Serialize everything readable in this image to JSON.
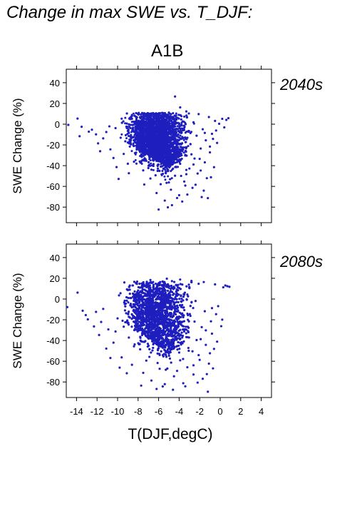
{
  "page": {
    "title": "Change in max SWE vs. T_DJF:",
    "scenario": "A1B"
  },
  "colors": {
    "points": "#1f1fbf",
    "panel_label": "#2222aa",
    "axis": "#000000"
  },
  "chart_data": [
    {
      "type": "scatter",
      "panel_label": "2040s",
      "ylabel": "SWE Change (%)",
      "xlabel": "",
      "xlim": [
        -15,
        5
      ],
      "ylim": [
        -95,
        53
      ],
      "yticks": [
        40,
        20,
        0,
        -20,
        -40,
        -60,
        -80
      ],
      "xticks": [
        -14,
        -12,
        -10,
        -8,
        -6,
        -4,
        -2,
        0,
        2,
        4
      ],
      "show_x_tick_labels": false,
      "series": [
        {
          "points": [
            [
              -14.8,
              -0.7
            ],
            [
              -13.9,
              5.4
            ],
            [
              -13.5,
              -2.5
            ],
            [
              -12.8,
              -7.2
            ],
            [
              -12.1,
              -9.8
            ],
            [
              -11.9,
              -18.5
            ],
            [
              -11.1,
              -7.6
            ],
            [
              -10.7,
              -24.3
            ],
            [
              -10.2,
              -3.8
            ],
            [
              -9.7,
              -13.1
            ],
            [
              -9.4,
              -28.7
            ],
            [
              -9.1,
              0.6
            ],
            [
              -8.7,
              -19.4
            ],
            [
              -8.4,
              -36.2
            ],
            [
              -8.2,
              -8.9
            ],
            [
              -7.9,
              2.1
            ],
            [
              -7.7,
              -25.8
            ],
            [
              -7.5,
              -44.6
            ],
            [
              -7.3,
              -14.7
            ],
            [
              -7.1,
              6.3
            ],
            [
              -6.9,
              -31.5
            ],
            [
              -6.8,
              -52.4
            ],
            [
              -6.6,
              -4.2
            ],
            [
              -6.4,
              -21.3
            ],
            [
              -6.3,
              9.1
            ],
            [
              -6.1,
              -39.8
            ],
            [
              -5.9,
              -11.6
            ],
            [
              -5.8,
              -57.9
            ],
            [
              -5.6,
              3.7
            ],
            [
              -5.5,
              -27.4
            ],
            [
              -5.3,
              -46.1
            ],
            [
              -5.2,
              -8.3
            ],
            [
              -5.0,
              11.2
            ],
            [
              -4.9,
              -34.6
            ],
            [
              -4.8,
              -63.2
            ],
            [
              -4.6,
              -17.9
            ],
            [
              -4.5,
              -2.6
            ],
            [
              -4.4,
              -49.7
            ],
            [
              -4.3,
              8.4
            ],
            [
              -4.1,
              -24.1
            ],
            [
              -4.0,
              -68.5
            ],
            [
              -3.9,
              -38.2
            ],
            [
              -3.8,
              4.6
            ],
            [
              -3.6,
              -13.4
            ],
            [
              -3.5,
              -55.3
            ],
            [
              -3.4,
              -29.6
            ],
            [
              -3.3,
              12.3
            ],
            [
              -3.1,
              -6.7
            ],
            [
              -3.0,
              -42.8
            ],
            [
              -2.9,
              -19.2
            ],
            [
              -2.7,
              -61.4
            ],
            [
              -2.6,
              1.8
            ],
            [
              -2.5,
              -33.1
            ],
            [
              -2.3,
              -11.1
            ],
            [
              -2.2,
              -47.6
            ],
            [
              -2.1,
              9.7
            ],
            [
              -1.9,
              -23.5
            ],
            [
              -1.8,
              -70.3
            ],
            [
              -1.7,
              -4.9
            ],
            [
              -1.5,
              -36.8
            ],
            [
              -1.4,
              -15.6
            ],
            [
              -1.3,
              -52.1
            ],
            [
              -1.1,
              6.9
            ],
            [
              -1.0,
              -27.2
            ],
            [
              -0.8,
              -9.3
            ],
            [
              -0.6,
              -41.5
            ],
            [
              -0.5,
              3.2
            ],
            [
              -0.3,
              -18.1
            ],
            [
              -0.1,
              0.4
            ],
            [
              0.2,
              5.2
            ],
            [
              0.4,
              -3.1
            ],
            [
              0.6,
              4.1
            ],
            [
              0.8,
              5.8
            ],
            [
              -11.4,
              -13.7
            ],
            [
              -10.4,
              -32.6
            ],
            [
              -9.9,
              -52.8
            ],
            [
              -8.9,
              -47.3
            ],
            [
              -7.4,
              -58.2
            ],
            [
              -6.2,
              -66.4
            ],
            [
              -5.4,
              -73.7
            ],
            [
              -4.7,
              -78.1
            ],
            [
              -4.2,
              -71.2
            ],
            [
              -3.7,
              -74.6
            ],
            [
              -3.2,
              -67.9
            ],
            [
              -6.0,
              -82.3
            ],
            [
              -5.1,
              -80.2
            ],
            [
              -2.4,
              -58.4
            ],
            [
              -1.6,
              -64.1
            ],
            [
              -1.2,
              -71.3
            ],
            [
              -0.9,
              -51.2
            ],
            [
              -4.4,
              26.7
            ],
            [
              -3.9,
              16.2
            ],
            [
              -7.6,
              10.8
            ],
            [
              -8.6,
              8.9
            ],
            [
              -9.6,
              5.3
            ],
            [
              -10.8,
              -2.1
            ],
            [
              -12.5,
              -5.3
            ],
            [
              -13.7,
              -11.6
            ],
            [
              -11.7,
              -26.1
            ],
            [
              -10.1,
              -41.4
            ],
            [
              -9.0,
              -38.1
            ],
            [
              -8.1,
              -20.6
            ],
            [
              -7.0,
              -42.3
            ],
            [
              -6.5,
              -35.1
            ],
            [
              -5.7,
              -30.2
            ],
            [
              -5.2,
              -21.1
            ],
            [
              -4.9,
              -12.8
            ],
            [
              -4.3,
              -31.3
            ],
            [
              -3.7,
              -25.4
            ],
            [
              -3.3,
              -48.3
            ],
            [
              -2.8,
              -29.1
            ],
            [
              -2.0,
              -33.5
            ],
            [
              -1.5,
              -8.4
            ],
            [
              -0.7,
              -14.2
            ],
            [
              -0.4,
              -6.1
            ],
            [
              -6.7,
              -14.1
            ],
            [
              -7.8,
              -30.7
            ],
            [
              -8.5,
              -3.4
            ],
            [
              -9.2,
              -10.6
            ],
            [
              -6.0,
              -24.8
            ],
            [
              -5.6,
              -15.5
            ],
            [
              -4.6,
              -42.9
            ],
            [
              -3.4,
              -59.2
            ],
            [
              -2.6,
              -38.9
            ],
            [
              -1.9,
              -44.7
            ],
            [
              -1.0,
              -21.6
            ],
            [
              -8.3,
              -27.9
            ],
            [
              -7.2,
              -6.3
            ],
            [
              -6.3,
              -49.3
            ],
            [
              -5.0,
              -56.2
            ]
          ]
        }
      ]
    },
    {
      "type": "scatter",
      "panel_label": "2080s",
      "ylabel": "SWE Change (%)",
      "xlabel": "T(DJF,degC)",
      "xlim": [
        -15,
        5
      ],
      "ylim": [
        -95,
        53
      ],
      "yticks": [
        40,
        20,
        0,
        -20,
        -40,
        -60,
        -80
      ],
      "xticks": [
        -14,
        -12,
        -10,
        -8,
        -6,
        -4,
        -2,
        0,
        2,
        4
      ],
      "show_x_tick_labels": true,
      "series": [
        {
          "points": [
            [
              -14.9,
              -7.8
            ],
            [
              -13.9,
              6.2
            ],
            [
              -13.4,
              -11.3
            ],
            [
              -12.9,
              -19.6
            ],
            [
              -12.3,
              -26.4
            ],
            [
              -11.8,
              -34.7
            ],
            [
              -11.4,
              -9.5
            ],
            [
              -10.9,
              -29.3
            ],
            [
              -10.4,
              -42.1
            ],
            [
              -10.0,
              -18.7
            ],
            [
              -9.6,
              -56.3
            ],
            [
              -9.3,
              -4.8
            ],
            [
              -8.9,
              -37.2
            ],
            [
              -8.6,
              -63.4
            ],
            [
              -8.3,
              -22.6
            ],
            [
              -8.0,
              8.3
            ],
            [
              -7.8,
              -48.5
            ],
            [
              -7.5,
              -71.2
            ],
            [
              -7.3,
              -13.1
            ],
            [
              -7.1,
              12.4
            ],
            [
              -6.9,
              -55.8
            ],
            [
              -6.7,
              -78.6
            ],
            [
              -6.5,
              -32.1
            ],
            [
              -6.3,
              3.6
            ],
            [
              -6.1,
              -61.7
            ],
            [
              -6.0,
              15.2
            ],
            [
              -5.8,
              -41.9
            ],
            [
              -5.6,
              -84.3
            ],
            [
              -5.5,
              -19.4
            ],
            [
              -5.3,
              -68.2
            ],
            [
              -5.1,
              7.9
            ],
            [
              -5.0,
              -52.6
            ],
            [
              -4.8,
              -29.8
            ],
            [
              -4.7,
              17.3
            ],
            [
              -4.5,
              -74.5
            ],
            [
              -4.4,
              -8.1
            ],
            [
              -4.2,
              -45.3
            ],
            [
              -4.1,
              13.6
            ],
            [
              -3.9,
              -59.1
            ],
            [
              -3.8,
              -24.9
            ],
            [
              -3.6,
              -81.2
            ],
            [
              -3.5,
              4.2
            ],
            [
              -3.3,
              -36.7
            ],
            [
              -3.2,
              -65.8
            ],
            [
              -3.0,
              10.5
            ],
            [
              -2.9,
              -16.3
            ],
            [
              -2.7,
              -50.4
            ],
            [
              -2.6,
              -72.8
            ],
            [
              -2.4,
              -1.9
            ],
            [
              -2.3,
              -39.6
            ],
            [
              -2.1,
              14.7
            ],
            [
              -2.0,
              -58.7
            ],
            [
              -1.8,
              -27.1
            ],
            [
              -1.7,
              -76.9
            ],
            [
              -1.5,
              -11.8
            ],
            [
              -1.4,
              -44.2
            ],
            [
              -1.2,
              -89.4
            ],
            [
              -1.1,
              -62.3
            ],
            [
              -0.9,
              -21.5
            ],
            [
              -0.8,
              -33.4
            ],
            [
              -0.6,
              -48.1
            ],
            [
              -0.4,
              -14.6
            ],
            [
              -0.2,
              -6.9
            ],
            [
              0.1,
              -26.2
            ],
            [
              0.3,
              11.3
            ],
            [
              0.5,
              13.1
            ],
            [
              0.7,
              12.4
            ],
            [
              0.9,
              11.8
            ],
            [
              -10.7,
              -56.9
            ],
            [
              -9.1,
              -71.6
            ],
            [
              -7.7,
              -83.5
            ],
            [
              -6.2,
              -86.7
            ],
            [
              -5.4,
              -82.1
            ],
            [
              -4.6,
              -87.5
            ],
            [
              -3.4,
              -84.2
            ],
            [
              -2.2,
              -80.6
            ],
            [
              -1.3,
              -72.4
            ],
            [
              -0.7,
              -66.9
            ],
            [
              -12.1,
              -12.4
            ],
            [
              -11.1,
              -47.8
            ],
            [
              -9.8,
              -66.2
            ],
            [
              -8.8,
              -17.9
            ],
            [
              -7.6,
              -34.8
            ],
            [
              -6.6,
              -49.6
            ],
            [
              -5.7,
              -4.3
            ],
            [
              -4.9,
              -57.4
            ],
            [
              -4.3,
              -36.1
            ],
            [
              -3.7,
              -13.9
            ],
            [
              -3.1,
              -47.2
            ],
            [
              -2.5,
              -21.8
            ],
            [
              -1.9,
              -38.7
            ],
            [
              -1.0,
              -52.3
            ],
            [
              -0.3,
              -41.1
            ],
            [
              0.2,
              -19.9
            ],
            [
              -8.2,
              15.1
            ],
            [
              -6.8,
              18.3
            ],
            [
              -5.2,
              19.6
            ],
            [
              -3.9,
              18.8
            ],
            [
              -2.8,
              17.5
            ],
            [
              -1.6,
              16.4
            ],
            [
              -0.5,
              14.1
            ],
            [
              -13.1,
              -15.5
            ],
            [
              -11.6,
              -22.1
            ],
            [
              -10.2,
              -31.3
            ],
            [
              -9.4,
              -26.7
            ],
            [
              -8.4,
              -45.6
            ],
            [
              -7.2,
              -59.4
            ],
            [
              -6.4,
              -23.7
            ],
            [
              -5.9,
              -67.3
            ],
            [
              -4.0,
              -51.6
            ],
            [
              -3.3,
              -29.5
            ],
            [
              -2.6,
              -63.9
            ],
            [
              -1.4,
              -30.2
            ],
            [
              -0.8,
              -8.8
            ],
            [
              -7.0,
              -5.1
            ],
            [
              -6.1,
              -11.5
            ],
            [
              -5.3,
              -38.4
            ],
            [
              -4.7,
              -20.6
            ],
            [
              -4.2,
              -69.3
            ],
            [
              -2.1,
              -54.1
            ]
          ]
        }
      ]
    }
  ]
}
